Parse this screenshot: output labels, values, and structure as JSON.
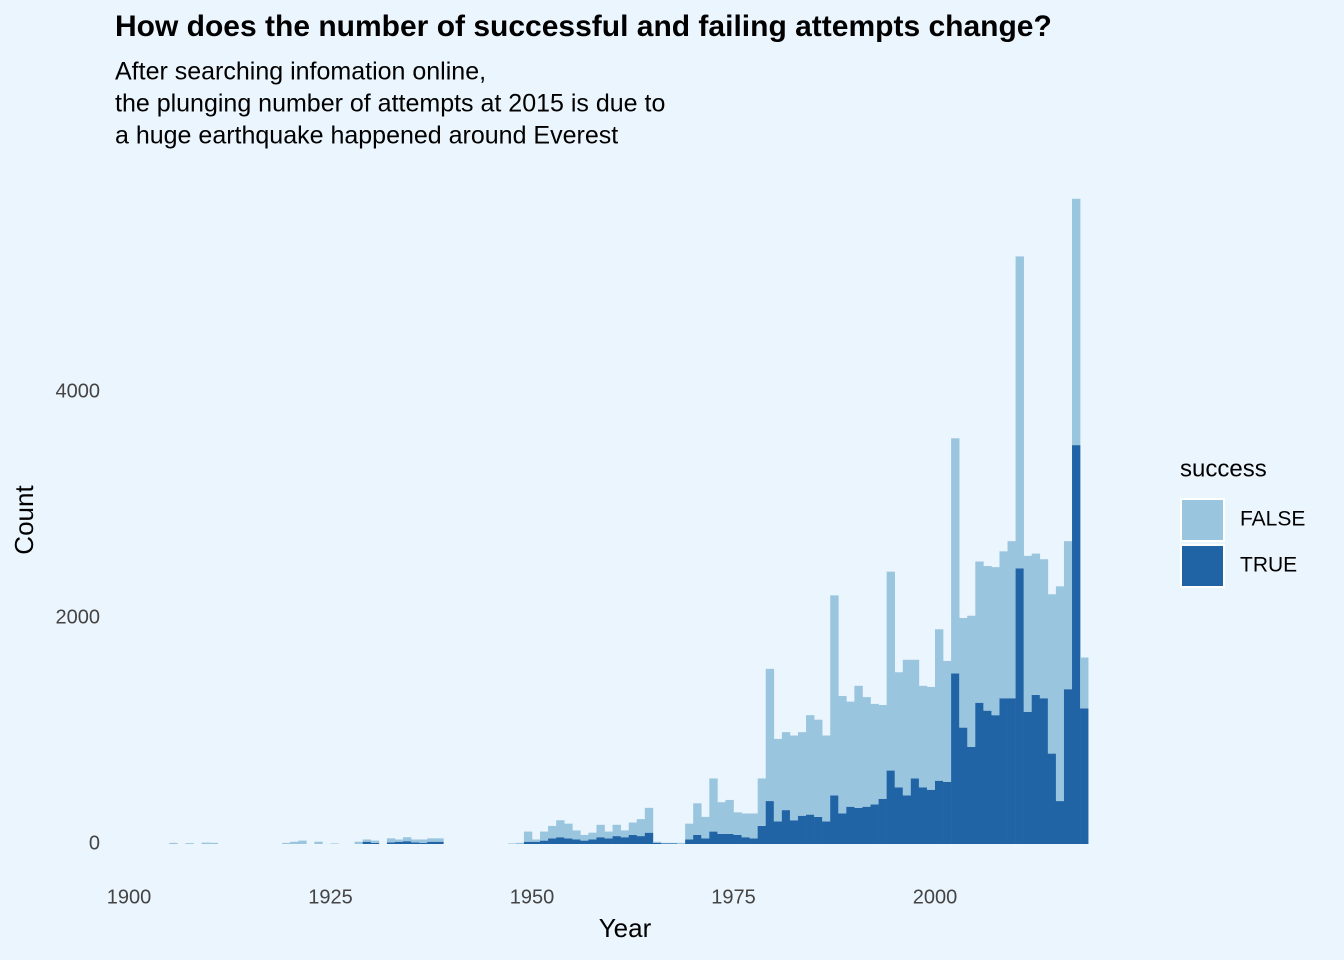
{
  "chart_data": {
    "type": "histogram",
    "title": "How does the number of successful and failing attempts change?",
    "subtitle": [
      "After searching infomation online,",
      "the plunging number of attempts at 2015 is due to",
      "a huge earthquake happened around Everest"
    ],
    "x_label": "Year",
    "y_label": "Count",
    "legend_title": "success",
    "bins": [
      1904,
      1905,
      1906,
      1907,
      1908,
      1909,
      1910,
      1911,
      1912,
      1913,
      1914,
      1915,
      1916,
      1917,
      1918,
      1919,
      1920,
      1921,
      1922,
      1923,
      1924,
      1925,
      1926,
      1927,
      1928,
      1929,
      1930,
      1931,
      1932,
      1933,
      1934,
      1935,
      1936,
      1937,
      1938,
      1939,
      1940,
      1941,
      1942,
      1943,
      1944,
      1945,
      1946,
      1947,
      1948,
      1949,
      1950,
      1951,
      1952,
      1953,
      1954,
      1955,
      1956,
      1957,
      1958,
      1959,
      1960,
      1961,
      1962,
      1963,
      1964,
      1965,
      1966,
      1967,
      1968,
      1969,
      1970,
      1971,
      1972,
      1973,
      1974,
      1975,
      1976,
      1977,
      1978,
      1979,
      1980,
      1981,
      1982,
      1983,
      1984,
      1985,
      1986,
      1987,
      1988,
      1989,
      1990,
      1991,
      1992,
      1993,
      1994,
      1995,
      1996,
      1997,
      1998,
      1999,
      2000,
      2001,
      2002,
      2003,
      2004,
      2005,
      2006,
      2007,
      2008,
      2009,
      2010,
      2011,
      2012,
      2013,
      2014,
      2015,
      2016,
      2017,
      2018,
      2019
    ],
    "series": [
      {
        "name": "FALSE",
        "color": "#9ac5de",
        "values": [
          0,
          10,
          0,
          8,
          0,
          12,
          10,
          0,
          0,
          0,
          0,
          0,
          0,
          0,
          0,
          10,
          20,
          30,
          0,
          20,
          0,
          5,
          0,
          0,
          20,
          20,
          20,
          0,
          35,
          20,
          35,
          25,
          30,
          30,
          30,
          0,
          0,
          0,
          0,
          0,
          0,
          0,
          0,
          5,
          10,
          90,
          20,
          80,
          110,
          150,
          130,
          80,
          50,
          60,
          110,
          60,
          100,
          60,
          110,
          150,
          220,
          10,
          5,
          5,
          10,
          140,
          280,
          190,
          470,
          280,
          300,
          200,
          210,
          220,
          420,
          1170,
          730,
          690,
          750,
          740,
          880,
          860,
          760,
          1770,
          1040,
          930,
          1080,
          970,
          890,
          830,
          1760,
          1020,
          1200,
          1050,
          900,
          910,
          1340,
          1070,
          2080,
          970,
          1160,
          1250,
          1280,
          1310,
          1300,
          1390,
          2760,
          1380,
          1250,
          1230,
          1410,
          1900,
          1310,
          2180,
          450
        ]
      },
      {
        "name": "TRUE",
        "color": "#2064a6",
        "values": [
          0,
          0,
          0,
          0,
          0,
          0,
          0,
          0,
          0,
          0,
          0,
          0,
          0,
          0,
          0,
          0,
          0,
          0,
          0,
          0,
          0,
          0,
          0,
          0,
          0,
          20,
          10,
          0,
          15,
          20,
          25,
          15,
          10,
          20,
          20,
          0,
          0,
          0,
          0,
          0,
          0,
          0,
          0,
          0,
          0,
          20,
          20,
          30,
          50,
          60,
          50,
          40,
          30,
          40,
          60,
          50,
          70,
          60,
          80,
          70,
          100,
          10,
          5,
          5,
          0,
          40,
          80,
          50,
          110,
          90,
          90,
          80,
          60,
          50,
          160,
          380,
          200,
          300,
          210,
          250,
          260,
          240,
          200,
          430,
          270,
          330,
          320,
          330,
          350,
          400,
          650,
          500,
          430,
          580,
          500,
          480,
          560,
          550,
          1510,
          1030,
          860,
          1250,
          1180,
          1140,
          1290,
          1290,
          2440,
          1170,
          1320,
          1290,
          800,
          380,
          1370,
          3530,
          1200
        ]
      }
    ],
    "stack_order": [
      "TRUE",
      "FALSE"
    ],
    "xlim": [
      1896,
      2024
    ],
    "xticks": [
      1900,
      1925,
      1950,
      1975,
      2000
    ],
    "ylim": [
      -300,
      6000
    ],
    "yticks": [
      0,
      2000,
      4000
    ],
    "grid": false,
    "legend": "right"
  }
}
